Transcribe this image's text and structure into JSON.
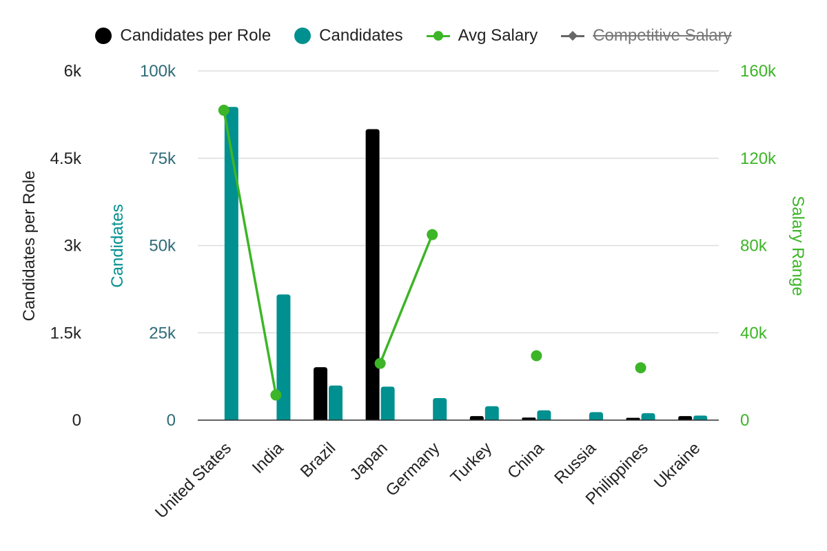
{
  "legend": [
    {
      "name": "Candidates per Role",
      "color": "#000000",
      "symbol": "circle",
      "hidden": false
    },
    {
      "name": "Candidates",
      "color": "#009090",
      "symbol": "circle",
      "hidden": false
    },
    {
      "name": "Avg Salary",
      "color": "#3cb526",
      "symbol": "line-circle",
      "hidden": false
    },
    {
      "name": "Competitive Salary",
      "color": "#666666",
      "symbol": "line-diamond",
      "hidden": true
    }
  ],
  "chart_data": {
    "type": "bar",
    "categories": [
      "United States",
      "India",
      "Brazil",
      "Japan",
      "Germany",
      "Turkey",
      "China",
      "Russia",
      "Philippines",
      "Ukraine"
    ],
    "axes": {
      "left_outer": {
        "title": "Candidates per Role",
        "ticks": [
          "0",
          "1.5k",
          "3k",
          "4.5k",
          "6k"
        ],
        "min": 0,
        "max": 6000,
        "color": "#222222"
      },
      "left_inner": {
        "title": "Candidates",
        "ticks": [
          "0",
          "25k",
          "50k",
          "75k",
          "100k"
        ],
        "min": 0,
        "max": 100000,
        "color": "#2e6b78",
        "title_color": "#009090"
      },
      "right": {
        "title": "Salary Range",
        "ticks": [
          "0",
          "40k",
          "80k",
          "120k",
          "160k"
        ],
        "min": 0,
        "max": 160000,
        "color": "#3cb526"
      }
    },
    "grid": true,
    "legend_position": "top",
    "series": [
      {
        "name": "Candidates per Role",
        "type": "bar",
        "axis": "left_outer",
        "color": "#000000",
        "values": [
          null,
          null,
          910,
          5000,
          null,
          70,
          45,
          null,
          40,
          70
        ]
      },
      {
        "name": "Candidates",
        "type": "bar",
        "axis": "left_inner",
        "color": "#009090",
        "values": [
          89700,
          36000,
          9900,
          9600,
          6300,
          4000,
          2800,
          2300,
          2000,
          1300
        ]
      },
      {
        "name": "Avg Salary",
        "type": "line",
        "axis": "right",
        "color": "#3cb526",
        "values": [
          142000,
          11500,
          null,
          26000,
          85000,
          null,
          29500,
          null,
          24000,
          null
        ]
      }
    ]
  }
}
